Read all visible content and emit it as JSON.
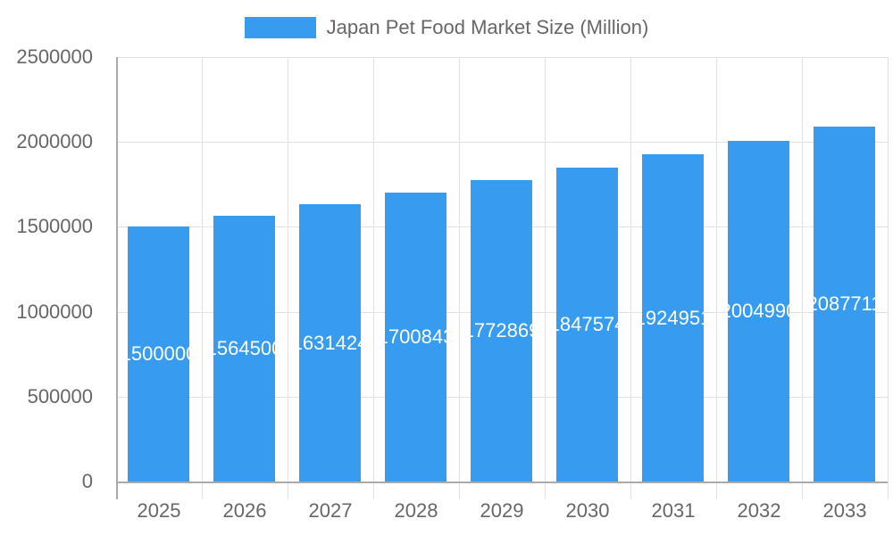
{
  "chart_data": {
    "type": "bar",
    "title": "",
    "legend": [
      "Japan Pet Food Market Size (Million)"
    ],
    "legend_position": "top",
    "categories": [
      "2025",
      "2026",
      "2027",
      "2028",
      "2029",
      "2030",
      "2031",
      "2032",
      "2033"
    ],
    "series": [
      {
        "name": "Japan Pet Food Market Size (Million)",
        "color": "#379cf0",
        "values": [
          1500000,
          1564500,
          1631424,
          1700843,
          1772869,
          1847574,
          1924951,
          2004990,
          2087711
        ]
      }
    ],
    "xlabel": "",
    "ylabel": "",
    "ylim": [
      0,
      2500000
    ],
    "yticks": [
      "0",
      "500000",
      "1000000",
      "1500000",
      "2000000",
      "2500000"
    ],
    "grid": true
  }
}
